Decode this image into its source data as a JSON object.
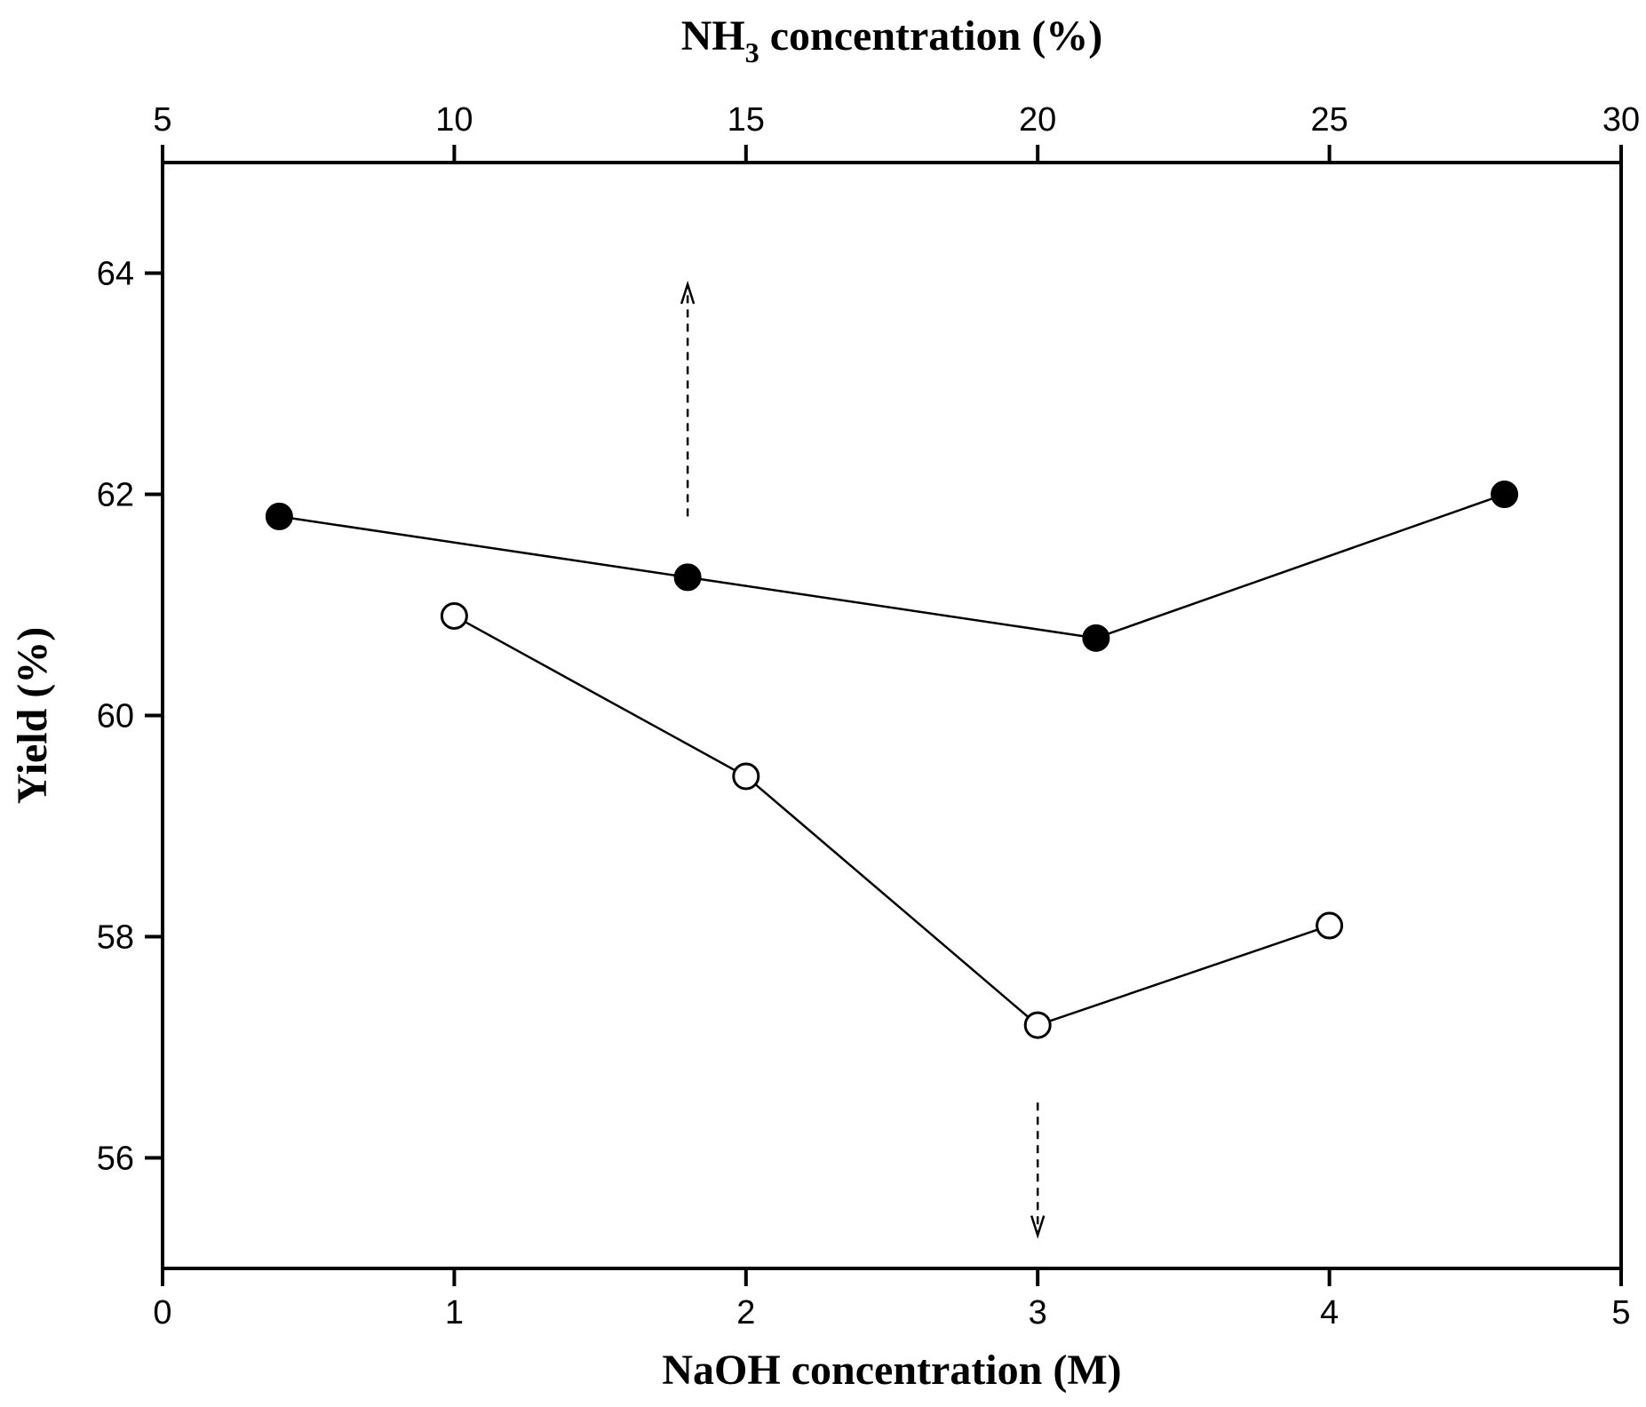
{
  "chart_data": {
    "type": "line",
    "title": "",
    "xlabel": "NaOH concentration (M)",
    "x2label": {
      "main": "NH",
      "sub": "3",
      "rest": " concentration (%)"
    },
    "ylabel": "Yield (%)",
    "xlim": [
      0,
      5
    ],
    "x2lim": [
      5,
      30
    ],
    "ylim": [
      55,
      65
    ],
    "x_ticks": [
      0,
      1,
      2,
      3,
      4,
      5
    ],
    "x2_ticks": [
      5,
      10,
      15,
      20,
      25,
      30
    ],
    "y_ticks": [
      56,
      58,
      60,
      62,
      64
    ],
    "grid": false,
    "series": [
      {
        "name": "NaOH (open circles)",
        "axis": "bottom",
        "marker": "open-circle",
        "x": [
          1,
          2,
          3,
          4
        ],
        "y": [
          60.9,
          59.45,
          57.2,
          58.1
        ]
      },
      {
        "name": "NH3 (filled circles)",
        "axis": "top",
        "marker": "filled-circle",
        "x": [
          7,
          14,
          21,
          28
        ],
        "y": [
          61.8,
          61.25,
          60.7,
          62.0
        ]
      }
    ],
    "annotations": [
      {
        "type": "dashed-arrow",
        "direction": "up",
        "x2": 14,
        "y_from": 61.8,
        "y_to": 63.9,
        "meaning": "filled series uses top axis"
      },
      {
        "type": "dashed-arrow",
        "direction": "down",
        "x": 3,
        "y_from": 56.5,
        "y_to": 55.3,
        "meaning": "open series uses bottom axis"
      }
    ]
  }
}
